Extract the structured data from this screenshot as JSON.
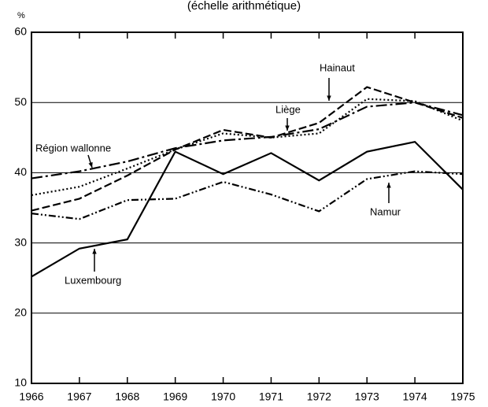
{
  "chart_data": {
    "type": "line",
    "subtitle": "(échelle arithmétique)",
    "y_label": "%",
    "x": [
      1966,
      1967,
      1968,
      1969,
      1970,
      1971,
      1972,
      1973,
      1974,
      1975
    ],
    "xlim": [
      1966,
      1975
    ],
    "xticks": [
      1966,
      1967,
      1968,
      1969,
      1970,
      1971,
      1972,
      1973,
      1974,
      1975
    ],
    "ylim": [
      10,
      60
    ],
    "yticks": [
      10,
      20,
      30,
      40,
      50,
      60
    ],
    "grid": true,
    "series": [
      {
        "name": "Luxembourg",
        "color": "#000000",
        "dash": "none",
        "values": [
          25.2,
          29.2,
          30.5,
          43.0,
          39.8,
          42.8,
          38.9,
          43.0,
          44.4,
          37.6
        ]
      },
      {
        "name": "Namur",
        "color": "#000000",
        "dash": "9,3,2,3,2,3",
        "values": [
          34.2,
          33.4,
          36.1,
          36.3,
          38.7,
          36.9,
          34.5,
          39.1,
          40.2,
          39.8
        ]
      },
      {
        "name": "Hainaut",
        "color": "#000000",
        "dash": "10,4",
        "values": [
          34.6,
          36.3,
          39.6,
          43.3,
          46.1,
          45.0,
          47.1,
          52.2,
          50.0,
          47.8
        ]
      },
      {
        "name": "Liège",
        "color": "#000000",
        "dash": "2,3",
        "values": [
          36.8,
          38.0,
          40.6,
          43.3,
          45.6,
          45.0,
          45.6,
          50.5,
          50.2,
          47.4
        ]
      },
      {
        "name": "Région wallonne",
        "color": "#000000",
        "dash": "14,4,3,4",
        "values": [
          39.2,
          40.2,
          41.6,
          43.5,
          44.6,
          45.1,
          46.2,
          49.4,
          50.0,
          48.2
        ]
      }
    ]
  }
}
